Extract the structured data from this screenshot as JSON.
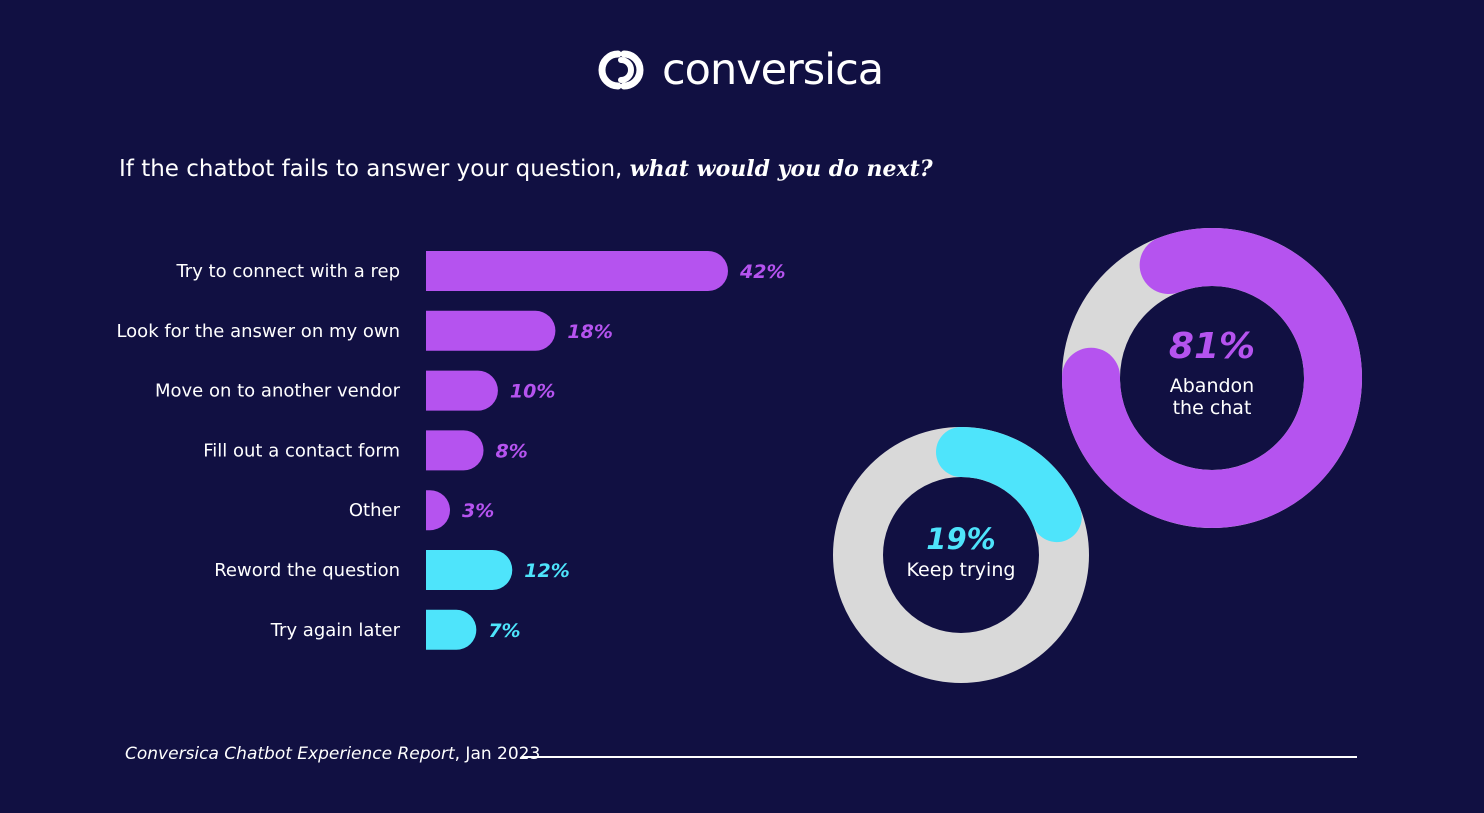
{
  "brand": {
    "name": "conversica",
    "logo_icon": "interlocking-rings-icon"
  },
  "title": {
    "main": "If the chatbot fails to answer your question, ",
    "emphasis": "what would you do next?"
  },
  "colors": {
    "background": "#111042",
    "purple": "#b553ef",
    "cyan": "#4ee4fb",
    "track": "#d9d9d9"
  },
  "chart_data": [
    {
      "type": "bar",
      "orientation": "horizontal",
      "categories": [
        "Try to connect with a rep",
        "Look for the answer on my own",
        "Move on to another vendor",
        "Fill out a contact form",
        "Other",
        "Reword the question",
        "Try again later"
      ],
      "values": [
        42,
        18,
        10,
        8,
        3,
        12,
        7
      ],
      "value_labels": [
        "42%",
        "18%",
        "10%",
        "8%",
        "3%",
        "12%",
        "7%"
      ],
      "bar_colors": [
        "#b553ef",
        "#b553ef",
        "#b553ef",
        "#b553ef",
        "#b553ef",
        "#4ee4fb",
        "#4ee4fb"
      ],
      "unit": "%"
    },
    {
      "type": "pie",
      "style": "donut",
      "value": 81,
      "value_label": "81%",
      "label_lines": [
        "Abandon",
        "the chat"
      ],
      "color": "#b553ef"
    },
    {
      "type": "pie",
      "style": "donut",
      "value": 19,
      "value_label": "19%",
      "label_lines": [
        "Keep trying"
      ],
      "color": "#4ee4fb"
    }
  ],
  "footer": {
    "source": "Conversica Chatbot Experience Report",
    "date": ", Jan 2023"
  }
}
